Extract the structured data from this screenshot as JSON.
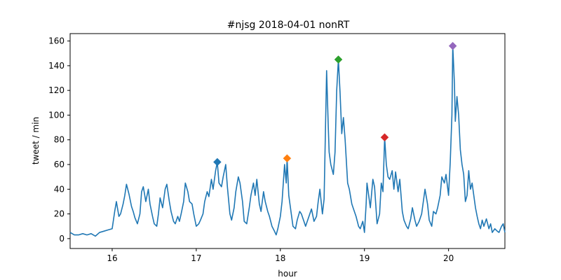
{
  "chart_data": {
    "type": "line",
    "title": "#njsg 2018-04-01 nonRT",
    "xlabel": "hour",
    "ylabel": "tweet / min",
    "xlim": [
      15.5,
      20.67
    ],
    "ylim": [
      -8,
      166
    ],
    "xticks": [
      16,
      17,
      18,
      19,
      20
    ],
    "yticks": [
      0,
      20,
      40,
      60,
      80,
      100,
      120,
      140,
      160
    ],
    "line_color": "#1f77b4",
    "series": [
      {
        "name": "tweets per minute",
        "points": [
          [
            15.5,
            5
          ],
          [
            15.55,
            3
          ],
          [
            15.6,
            3
          ],
          [
            15.65,
            4
          ],
          [
            15.7,
            3
          ],
          [
            15.75,
            4
          ],
          [
            15.8,
            2
          ],
          [
            15.85,
            5
          ],
          [
            15.9,
            6
          ],
          [
            15.95,
            7
          ],
          [
            16.0,
            8
          ],
          [
            16.03,
            22
          ],
          [
            16.05,
            30
          ],
          [
            16.08,
            18
          ],
          [
            16.1,
            20
          ],
          [
            16.13,
            28
          ],
          [
            16.15,
            35
          ],
          [
            16.17,
            44
          ],
          [
            16.2,
            36
          ],
          [
            16.23,
            26
          ],
          [
            16.25,
            22
          ],
          [
            16.27,
            17
          ],
          [
            16.3,
            12
          ],
          [
            16.33,
            20
          ],
          [
            16.35,
            38
          ],
          [
            16.37,
            42
          ],
          [
            16.4,
            30
          ],
          [
            16.43,
            40
          ],
          [
            16.45,
            28
          ],
          [
            16.48,
            18
          ],
          [
            16.5,
            12
          ],
          [
            16.53,
            10
          ],
          [
            16.55,
            20
          ],
          [
            16.57,
            33
          ],
          [
            16.6,
            25
          ],
          [
            16.63,
            40
          ],
          [
            16.65,
            44
          ],
          [
            16.68,
            30
          ],
          [
            16.7,
            22
          ],
          [
            16.73,
            14
          ],
          [
            16.75,
            12
          ],
          [
            16.78,
            18
          ],
          [
            16.8,
            14
          ],
          [
            16.82,
            20
          ],
          [
            16.85,
            30
          ],
          [
            16.87,
            45
          ],
          [
            16.9,
            38
          ],
          [
            16.92,
            30
          ],
          [
            16.95,
            28
          ],
          [
            16.97,
            20
          ],
          [
            17.0,
            10
          ],
          [
            17.03,
            12
          ],
          [
            17.05,
            15
          ],
          [
            17.08,
            20
          ],
          [
            17.1,
            30
          ],
          [
            17.13,
            38
          ],
          [
            17.15,
            34
          ],
          [
            17.18,
            48
          ],
          [
            17.2,
            40
          ],
          [
            17.23,
            55
          ],
          [
            17.25,
            62
          ],
          [
            17.27,
            45
          ],
          [
            17.3,
            42
          ],
          [
            17.32,
            50
          ],
          [
            17.35,
            60
          ],
          [
            17.37,
            42
          ],
          [
            17.4,
            20
          ],
          [
            17.42,
            15
          ],
          [
            17.45,
            25
          ],
          [
            17.47,
            38
          ],
          [
            17.5,
            50
          ],
          [
            17.52,
            45
          ],
          [
            17.55,
            30
          ],
          [
            17.57,
            14
          ],
          [
            17.6,
            12
          ],
          [
            17.63,
            25
          ],
          [
            17.65,
            35
          ],
          [
            17.68,
            45
          ],
          [
            17.7,
            35
          ],
          [
            17.72,
            48
          ],
          [
            17.75,
            28
          ],
          [
            17.77,
            22
          ],
          [
            17.8,
            38
          ],
          [
            17.82,
            30
          ],
          [
            17.85,
            22
          ],
          [
            17.87,
            18
          ],
          [
            17.9,
            10
          ],
          [
            17.93,
            6
          ],
          [
            17.95,
            3
          ],
          [
            17.97,
            8
          ],
          [
            18.0,
            18
          ],
          [
            18.02,
            30
          ],
          [
            18.05,
            60
          ],
          [
            18.07,
            45
          ],
          [
            18.08,
            65
          ],
          [
            18.1,
            35
          ],
          [
            18.13,
            20
          ],
          [
            18.15,
            10
          ],
          [
            18.18,
            8
          ],
          [
            18.2,
            15
          ],
          [
            18.23,
            22
          ],
          [
            18.25,
            20
          ],
          [
            18.28,
            14
          ],
          [
            18.3,
            10
          ],
          [
            18.33,
            16
          ],
          [
            18.35,
            20
          ],
          [
            18.37,
            24
          ],
          [
            18.4,
            14
          ],
          [
            18.43,
            18
          ],
          [
            18.45,
            30
          ],
          [
            18.47,
            40
          ],
          [
            18.5,
            20
          ],
          [
            18.52,
            32
          ],
          [
            18.55,
            136
          ],
          [
            18.57,
            90
          ],
          [
            18.58,
            70
          ],
          [
            18.6,
            60
          ],
          [
            18.63,
            52
          ],
          [
            18.65,
            70
          ],
          [
            18.67,
            120
          ],
          [
            18.69,
            145
          ],
          [
            18.71,
            118
          ],
          [
            18.73,
            85
          ],
          [
            18.75,
            98
          ],
          [
            18.77,
            80
          ],
          [
            18.8,
            45
          ],
          [
            18.82,
            40
          ],
          [
            18.85,
            28
          ],
          [
            18.88,
            22
          ],
          [
            18.9,
            18
          ],
          [
            18.93,
            10
          ],
          [
            18.95,
            8
          ],
          [
            18.98,
            14
          ],
          [
            19.0,
            5
          ],
          [
            19.02,
            28
          ],
          [
            19.03,
            45
          ],
          [
            19.05,
            35
          ],
          [
            19.07,
            25
          ],
          [
            19.1,
            48
          ],
          [
            19.12,
            42
          ],
          [
            19.15,
            12
          ],
          [
            19.18,
            20
          ],
          [
            19.2,
            45
          ],
          [
            19.22,
            38
          ],
          [
            19.24,
            82
          ],
          [
            19.26,
            60
          ],
          [
            19.28,
            50
          ],
          [
            19.3,
            48
          ],
          [
            19.33,
            55
          ],
          [
            19.35,
            40
          ],
          [
            19.37,
            54
          ],
          [
            19.4,
            38
          ],
          [
            19.42,
            48
          ],
          [
            19.45,
            22
          ],
          [
            19.47,
            15
          ],
          [
            19.5,
            10
          ],
          [
            19.52,
            8
          ],
          [
            19.55,
            16
          ],
          [
            19.57,
            25
          ],
          [
            19.6,
            15
          ],
          [
            19.62,
            10
          ],
          [
            19.65,
            14
          ],
          [
            19.68,
            20
          ],
          [
            19.7,
            30
          ],
          [
            19.72,
            40
          ],
          [
            19.75,
            28
          ],
          [
            19.77,
            15
          ],
          [
            19.8,
            10
          ],
          [
            19.82,
            22
          ],
          [
            19.85,
            20
          ],
          [
            19.87,
            25
          ],
          [
            19.9,
            35
          ],
          [
            19.92,
            50
          ],
          [
            19.95,
            45
          ],
          [
            19.97,
            52
          ],
          [
            20.0,
            35
          ],
          [
            20.02,
            62
          ],
          [
            20.04,
            100
          ],
          [
            20.05,
            156
          ],
          [
            20.07,
            125
          ],
          [
            20.08,
            95
          ],
          [
            20.1,
            115
          ],
          [
            20.12,
            100
          ],
          [
            20.14,
            72
          ],
          [
            20.16,
            60
          ],
          [
            20.18,
            52
          ],
          [
            20.2,
            30
          ],
          [
            20.22,
            35
          ],
          [
            20.24,
            55
          ],
          [
            20.26,
            40
          ],
          [
            20.28,
            45
          ],
          [
            20.3,
            35
          ],
          [
            20.32,
            25
          ],
          [
            20.34,
            18
          ],
          [
            20.36,
            12
          ],
          [
            20.38,
            8
          ],
          [
            20.4,
            15
          ],
          [
            20.42,
            10
          ],
          [
            20.45,
            16
          ],
          [
            20.48,
            8
          ],
          [
            20.5,
            12
          ],
          [
            20.52,
            5
          ],
          [
            20.55,
            8
          ],
          [
            20.58,
            6
          ],
          [
            20.6,
            5
          ],
          [
            20.63,
            10
          ],
          [
            20.65,
            12
          ],
          [
            20.67,
            5
          ]
        ]
      }
    ],
    "peaks": [
      {
        "x": 17.25,
        "y": 62,
        "color": "#1f77b4"
      },
      {
        "x": 18.08,
        "y": 65,
        "color": "#ff7f0e"
      },
      {
        "x": 18.69,
        "y": 145,
        "color": "#2ca02c"
      },
      {
        "x": 19.24,
        "y": 82,
        "color": "#d62728"
      },
      {
        "x": 20.05,
        "y": 156,
        "color": "#9467bd"
      }
    ]
  }
}
